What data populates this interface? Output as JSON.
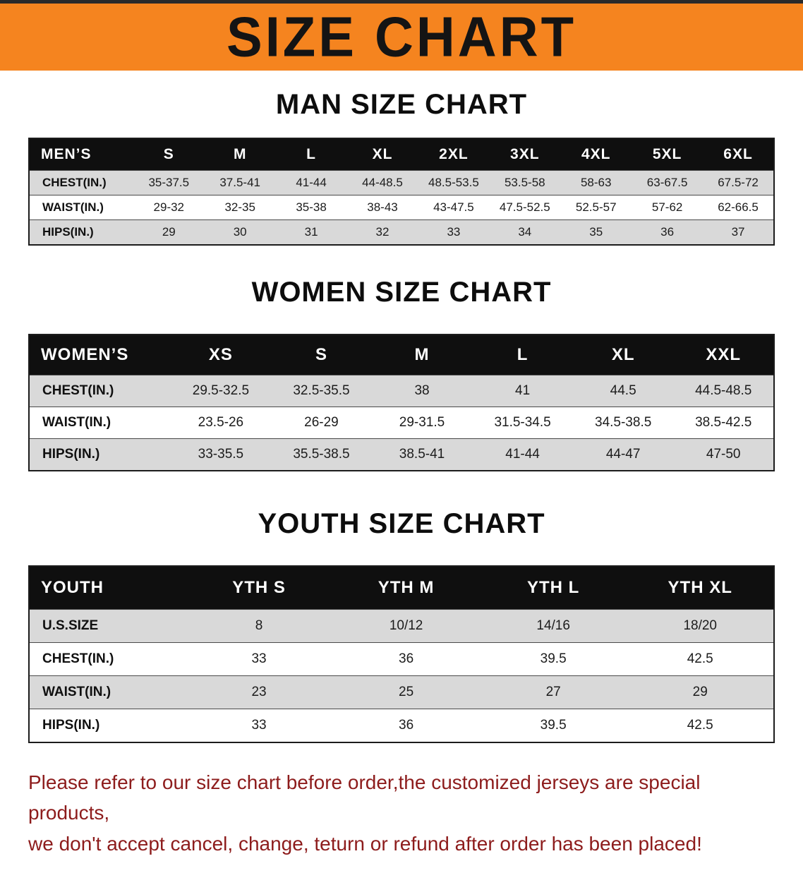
{
  "banner": {
    "title": "SIZE CHART",
    "bg_color": "#f5841f",
    "text_color": "#141414"
  },
  "sections": {
    "men": {
      "heading": "MAN SIZE CHART",
      "table": {
        "header": [
          "MEN’S",
          "S",
          "M",
          "L",
          "XL",
          "2XL",
          "3XL",
          "4XL",
          "5XL",
          "6XL"
        ],
        "rows": [
          [
            "CHEST(IN.)",
            "35-37.5",
            "37.5-41",
            "41-44",
            "44-48.5",
            "48.5-53.5",
            "53.5-58",
            "58-63",
            "63-67.5",
            "67.5-72"
          ],
          [
            "WAIST(IN.)",
            "29-32",
            "32-35",
            "35-38",
            "38-43",
            "43-47.5",
            "47.5-52.5",
            "52.5-57",
            "57-62",
            "62-66.5"
          ],
          [
            "HIPS(IN.)",
            "29",
            "30",
            "31",
            "32",
            "33",
            "34",
            "35",
            "36",
            "37"
          ]
        ]
      }
    },
    "women": {
      "heading": "WOMEN SIZE CHART",
      "table": {
        "header": [
          "WOMEN’S",
          "XS",
          "S",
          "M",
          "L",
          "XL",
          "XXL"
        ],
        "rows": [
          [
            "CHEST(IN.)",
            "29.5-32.5",
            "32.5-35.5",
            "38",
            "41",
            "44.5",
            "44.5-48.5"
          ],
          [
            "WAIST(IN.)",
            "23.5-26",
            "26-29",
            "29-31.5",
            "31.5-34.5",
            "34.5-38.5",
            "38.5-42.5"
          ],
          [
            "HIPS(IN.)",
            "33-35.5",
            "35.5-38.5",
            "38.5-41",
            "41-44",
            "44-47",
            "47-50"
          ]
        ]
      }
    },
    "youth": {
      "heading": "YOUTH SIZE CHART",
      "table": {
        "header": [
          "YOUTH",
          "YTH S",
          "YTH M",
          "YTH L",
          "YTH XL"
        ],
        "rows": [
          [
            "U.S.SIZE",
            "8",
            "10/12",
            "14/16",
            "18/20"
          ],
          [
            "CHEST(IN.)",
            "33",
            "36",
            "39.5",
            "42.5"
          ],
          [
            "WAIST(IN.)",
            "23",
            "25",
            "27",
            "29"
          ],
          [
            "HIPS(IN.)",
            "33",
            "36",
            "39.5",
            "42.5"
          ]
        ]
      }
    }
  },
  "disclaimer": {
    "line1": "Please refer to our size chart before order,the customized jerseys are special products,",
    "line2": "we don't accept cancel, change, teturn or refund after order has been placed!",
    "text_color": "#8d1c1c"
  }
}
